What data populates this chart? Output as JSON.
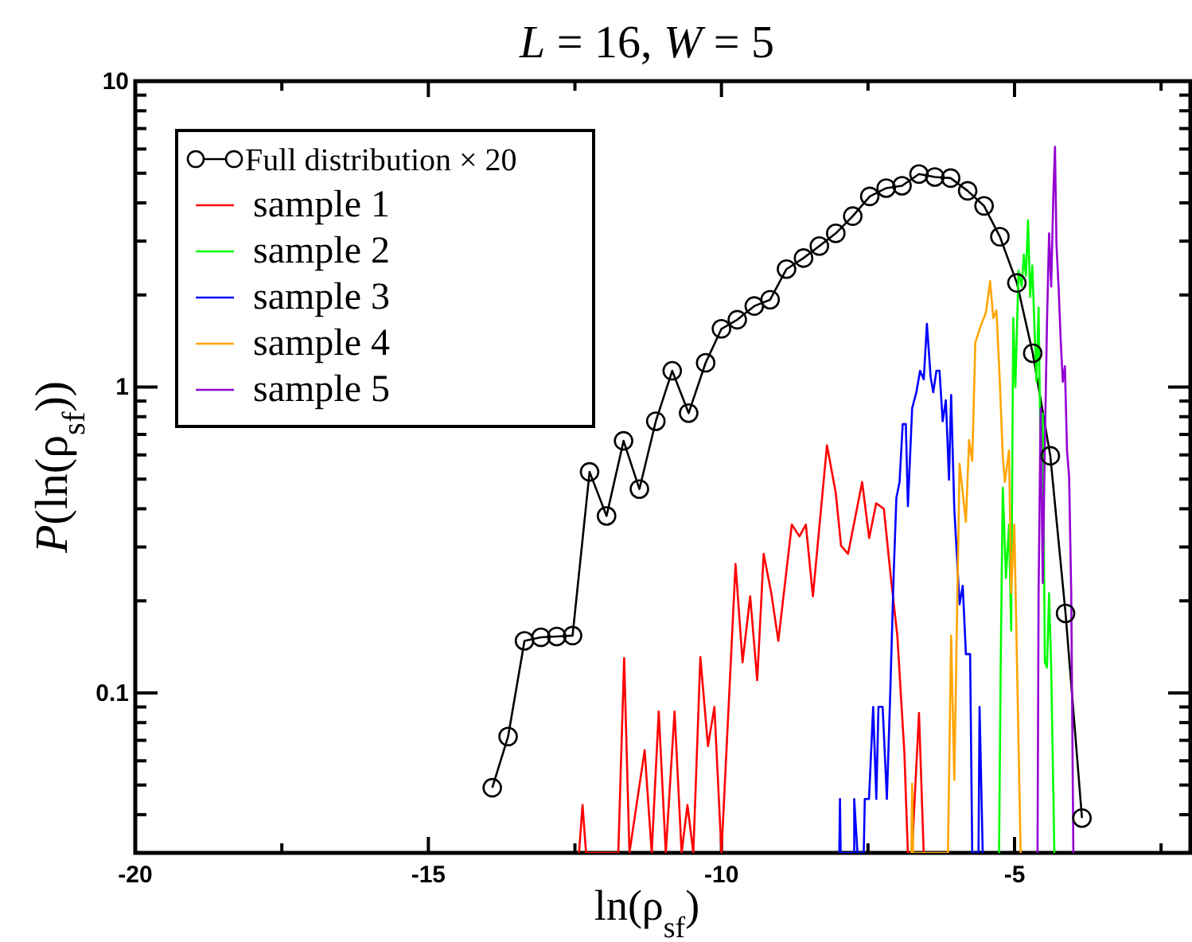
{
  "chart_data": {
    "type": "line",
    "title": "L = 16, W = 5",
    "xlabel": "ln(ρ$_{sf}$)",
    "ylabel": "P(ln(ρ$_{sf}$))",
    "log": "y",
    "grid": false,
    "legend": "top left",
    "line_style": "solid",
    "xlim": [
      -20,
      -2
    ],
    "xticks": [
      -20,
      {
        "value": -17.5,
        "label": null
      },
      -15,
      {
        "value": -12.5,
        "label": null
      },
      -10,
      {
        "value": -7.5,
        "label": null
      },
      -5,
      {
        "value": -2.5,
        "label": null
      }
    ],
    "ylim": [
      0.03,
      10
    ],
    "yticks": [
      {
        "value": 0.03,
        "label": null
      },
      {
        "value": 0.04,
        "label": null
      },
      {
        "value": 0.05,
        "label": null
      },
      {
        "value": 0.06,
        "label": null
      },
      {
        "value": 0.07,
        "label": null
      },
      {
        "value": 0.08,
        "label": null
      },
      {
        "value": 0.09,
        "label": null
      },
      0.1,
      {
        "value": 0.2,
        "label": null
      },
      {
        "value": 0.3,
        "label": null
      },
      {
        "value": 0.4,
        "label": null
      },
      {
        "value": 0.5,
        "label": null
      },
      {
        "value": 0.6,
        "label": null
      },
      {
        "value": 0.7,
        "label": null
      },
      {
        "value": 0.8,
        "label": null
      },
      {
        "value": 0.9,
        "label": null
      },
      1,
      {
        "value": 2,
        "label": null
      },
      {
        "value": 3,
        "label": null
      },
      {
        "value": 4,
        "label": null
      },
      {
        "value": 5,
        "label": null
      },
      {
        "value": 6,
        "label": null
      },
      {
        "value": 7,
        "label": null
      },
      {
        "value": 8,
        "label": null
      },
      {
        "value": 9,
        "label": null
      },
      10
    ],
    "series": [
      {
        "name": "Full distribution × 20",
        "color": "#000000",
        "marker": "circle",
        "x": [
          -13.91,
          -13.64,
          -13.36,
          -13.08,
          -12.81,
          -12.54,
          -12.25,
          -11.96,
          -11.67,
          -11.4,
          -11.12,
          -10.84,
          -10.56,
          -10.27,
          -10.0,
          -9.73,
          -9.44,
          -9.17,
          -8.89,
          -8.6,
          -8.33,
          -8.05,
          -7.76,
          -7.47,
          -7.19,
          -6.92,
          -6.63,
          -6.36,
          -6.09,
          -5.8,
          -5.52,
          -5.25,
          -4.96,
          -4.69,
          -4.39,
          -4.13,
          -3.85
        ],
        "values": [
          0.049,
          0.072,
          0.148,
          0.152,
          0.153,
          0.154,
          0.528,
          0.379,
          0.667,
          0.464,
          0.773,
          1.13,
          0.822,
          1.2,
          1.55,
          1.66,
          1.84,
          1.93,
          2.43,
          2.64,
          2.89,
          3.18,
          3.62,
          4.2,
          4.47,
          4.55,
          4.97,
          4.86,
          4.82,
          4.38,
          3.91,
          3.1,
          2.19,
          1.29,
          0.596,
          0.182,
          0.039
        ]
      },
      {
        "name": "sample 1",
        "color": "#ff0000",
        "marker": "none",
        "x": [
          -12.43,
          -12.37,
          -12.31,
          -11.76,
          -11.66,
          -11.57,
          -11.31,
          -11.19,
          -11.07,
          -10.95,
          -10.8,
          -10.68,
          -10.58,
          -10.48,
          -10.36,
          -10.23,
          -10.12,
          -10.0,
          -9.85,
          -9.76,
          -9.64,
          -9.51,
          -9.39,
          -9.28,
          -9.15,
          -9.03,
          -8.8,
          -8.67,
          -8.56,
          -8.44,
          -8.2,
          -8.05,
          -7.96,
          -7.84,
          -7.6,
          -7.48,
          -7.36,
          -7.23,
          -7.11,
          -7.0,
          -6.88,
          -6.82,
          -6.75,
          -6.63,
          -6.55
        ],
        "values": [
          0.03,
          0.043,
          0.03,
          0.03,
          0.13,
          0.03,
          0.065,
          0.03,
          0.087,
          0.03,
          0.087,
          0.03,
          0.043,
          0.03,
          0.131,
          0.067,
          0.09,
          0.03,
          0.116,
          0.264,
          0.126,
          0.207,
          0.11,
          0.285,
          0.212,
          0.148,
          0.355,
          0.325,
          0.355,
          0.207,
          0.645,
          0.451,
          0.303,
          0.285,
          0.489,
          0.321,
          0.417,
          0.4,
          0.238,
          0.154,
          0.064,
          0.03,
          0.03,
          0.086,
          0.03
        ]
      },
      {
        "name": "sample 2",
        "color": "#00ff00",
        "marker": "none",
        "x": [
          -5.264,
          -5.237,
          -5.201,
          -5.147,
          -5.094,
          -5.058,
          -5.022,
          -4.986,
          -4.932,
          -4.878,
          -4.842,
          -4.806,
          -4.77,
          -4.734,
          -4.698,
          -4.662,
          -4.626,
          -4.59,
          -4.555,
          -4.519,
          -4.483,
          -4.447,
          -4.411,
          -4.375,
          -4.321
        ],
        "values": [
          0.03,
          0.121,
          0.469,
          0.238,
          0.355,
          0.16,
          1.68,
          1.0,
          2.4,
          2.13,
          2.71,
          2.31,
          3.51,
          1.97,
          2.5,
          1.61,
          1.04,
          1.82,
          0.596,
          0.82,
          0.126,
          0.121,
          0.212,
          0.121,
          0.03
        ]
      },
      {
        "name": "sample 3",
        "color": "#0000ff",
        "marker": "none",
        "x": [
          -7.99,
          -7.978,
          -7.966,
          -7.735,
          -7.735,
          -7.68,
          -7.573,
          -7.555,
          -7.483,
          -7.412,
          -7.358,
          -7.322,
          -7.25,
          -7.178,
          -7.124,
          -7.061,
          -7.016,
          -6.962,
          -6.908,
          -6.855,
          -6.819,
          -6.747,
          -6.675,
          -6.612,
          -6.549,
          -6.495,
          -6.432,
          -6.387,
          -6.333,
          -6.28,
          -6.226,
          -6.172,
          -6.118,
          -6.082,
          -6.028,
          -5.938,
          -5.884,
          -5.83,
          -5.758,
          -5.722,
          -5.615,
          -5.597,
          -5.543
        ],
        "values": [
          0.03,
          0.045,
          0.03,
          0.03,
          0.045,
          0.03,
          0.03,
          0.045,
          0.045,
          0.09,
          0.045,
          0.09,
          0.09,
          0.045,
          0.095,
          0.248,
          0.434,
          0.489,
          0.757,
          0.757,
          0.408,
          0.853,
          0.962,
          1.13,
          1.06,
          1.61,
          1.08,
          0.962,
          1.13,
          1.13,
          0.773,
          0.906,
          0.498,
          0.942,
          0.4,
          0.195,
          0.224,
          0.134,
          0.134,
          0.03,
          0.03,
          0.09,
          0.03
        ]
      },
      {
        "name": "sample 4",
        "color": "#ffa500",
        "marker": "none",
        "x": [
          -6.76,
          -6.747,
          -6.73,
          -6.136,
          -6.082,
          -6.028,
          -5.938,
          -5.884,
          -5.83,
          -5.776,
          -5.722,
          -5.669,
          -5.579,
          -5.489,
          -5.417,
          -5.363,
          -5.309,
          -5.255,
          -5.201,
          -5.165,
          -5.094,
          -5.058,
          -5.004,
          -4.95,
          -4.896
        ],
        "values": [
          0.03,
          0.0505,
          0.03,
          0.03,
          0.154,
          0.052,
          0.561,
          0.451,
          0.362,
          0.671,
          0.573,
          1.4,
          1.58,
          1.75,
          2.22,
          1.68,
          1.78,
          1.08,
          0.596,
          0.489,
          0.621,
          0.212,
          0.355,
          0.103,
          0.03
        ]
      },
      {
        "name": "sample 5",
        "color": "#9400d3",
        "marker": "none",
        "x": [
          -4.608,
          -4.59,
          -4.555,
          -4.519,
          -4.483,
          -4.447,
          -4.411,
          -4.375,
          -4.339,
          -4.31,
          -4.285,
          -4.249,
          -4.213,
          -4.177,
          -4.141,
          -4.105,
          -4.069,
          -4.033,
          -3.997
        ],
        "values": [
          0.03,
          0.212,
          0.853,
          0.229,
          0.645,
          1.61,
          3.18,
          2.13,
          4.2,
          6.1,
          2.93,
          2.13,
          1.43,
          1.04,
          1.17,
          0.621,
          0.508,
          0.212,
          0.03
        ]
      }
    ]
  }
}
